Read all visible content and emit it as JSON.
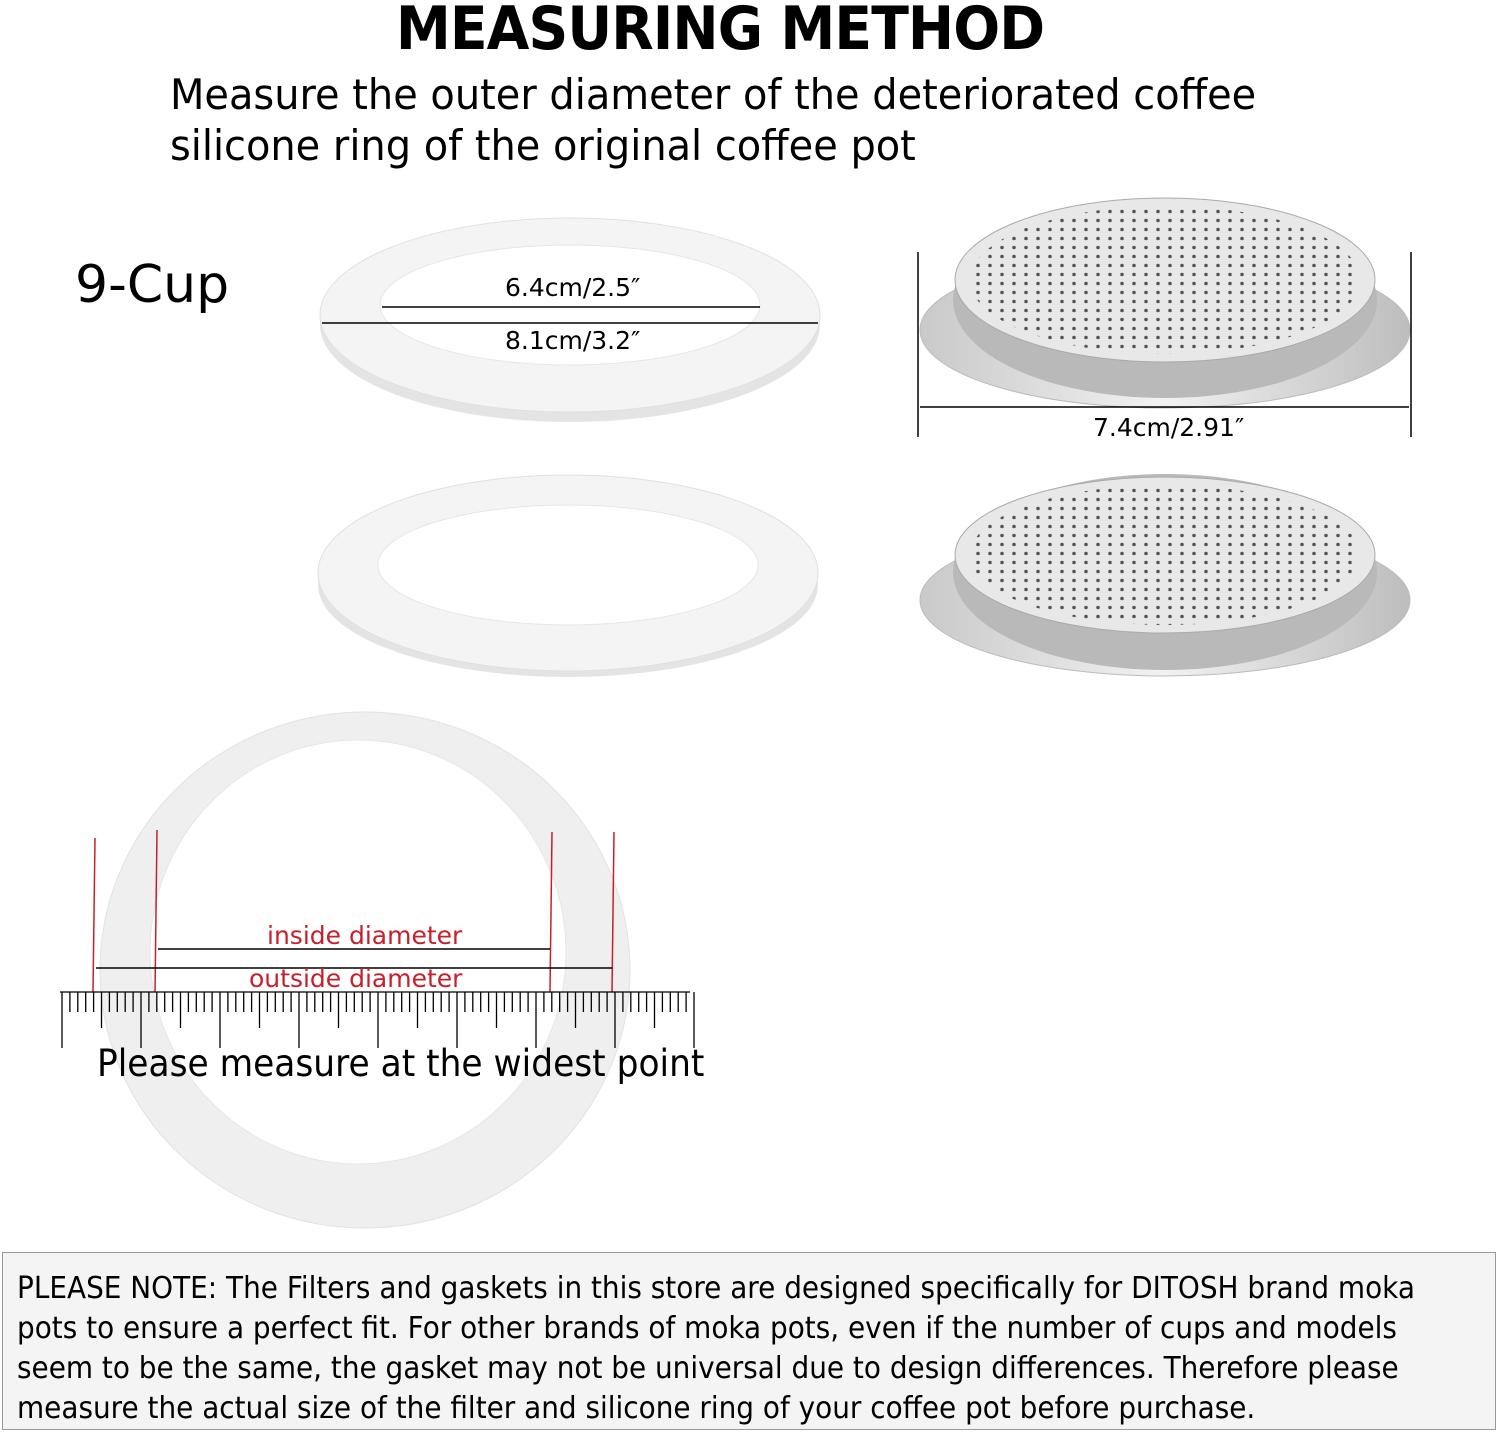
{
  "header": {
    "title": "MEASURING METHOD",
    "subtitle_lines": [
      "Measure the outer diameter of the deteriorated coffee",
      "silicone ring of the original coffee pot"
    ]
  },
  "model": "9-Cup",
  "gasket": {
    "inner_label": "6.4cm/2.5″",
    "outer_label": "8.1cm/3.2″"
  },
  "filter": {
    "diameter_label": "7.4cm/2.91″"
  },
  "measure_guide": {
    "inside_label": "inside diameter",
    "outside_label": "outside diameter",
    "instruction": "Please measure at the widest point",
    "accent": "#c8202a"
  },
  "note": {
    "lines": [
      "PLEASE NOTE: The Filters and gaskets in this store are designed specifically for DITOSH brand moka",
      "pots to ensure a perfect fit. For other brands of moka pots, even if the number of cups and models",
      "seem to be the same, the gasket may not be universal due to design differences. Therefore please",
      "measure the actual size of the filter and silicone ring of your coffee pot before purchase."
    ]
  }
}
